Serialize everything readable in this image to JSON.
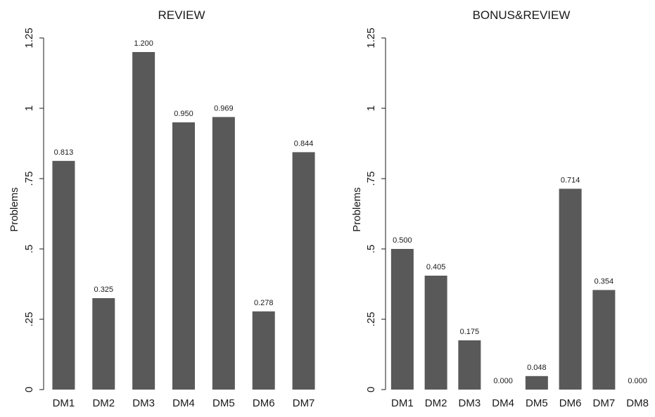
{
  "chart_data": [
    {
      "type": "bar",
      "title": "REVIEW",
      "ylabel": "Problems",
      "xlabel": "",
      "ylim": [
        0,
        1.25
      ],
      "yticks": [
        0,
        0.25,
        0.5,
        0.75,
        1,
        1.25
      ],
      "ytick_labels": [
        "0",
        ".25",
        ".5",
        ".75",
        "1",
        "1.25"
      ],
      "categories": [
        "DM1",
        "DM2",
        "DM3",
        "DM4",
        "DM5",
        "DM6",
        "DM7"
      ],
      "values": [
        0.813,
        0.325,
        1.2,
        0.95,
        0.969,
        0.278,
        0.844
      ],
      "value_labels": [
        "0.813",
        "0.325",
        "1.200",
        "0.950",
        "0.969",
        "0.278",
        "0.844"
      ],
      "bar_color": "#595959",
      "grid": false
    },
    {
      "type": "bar",
      "title": "BONUS&REVIEW",
      "ylabel": "Problems",
      "xlabel": "",
      "ylim": [
        0,
        1.25
      ],
      "yticks": [
        0,
        0.25,
        0.5,
        0.75,
        1,
        1.25
      ],
      "ytick_labels": [
        "0",
        ".25",
        ".5",
        ".75",
        "1",
        "1.25"
      ],
      "categories": [
        "DM1",
        "DM2",
        "DM3",
        "DM4",
        "DM5",
        "DM6",
        "DM7",
        "DM8"
      ],
      "values": [
        0.5,
        0.405,
        0.175,
        0.0,
        0.048,
        0.714,
        0.354,
        0.0
      ],
      "value_labels": [
        "0.500",
        "0.405",
        "0.175",
        "0.000",
        "0.048",
        "0.714",
        "0.354",
        "0.000"
      ],
      "bar_color": "#595959",
      "grid": false
    }
  ]
}
